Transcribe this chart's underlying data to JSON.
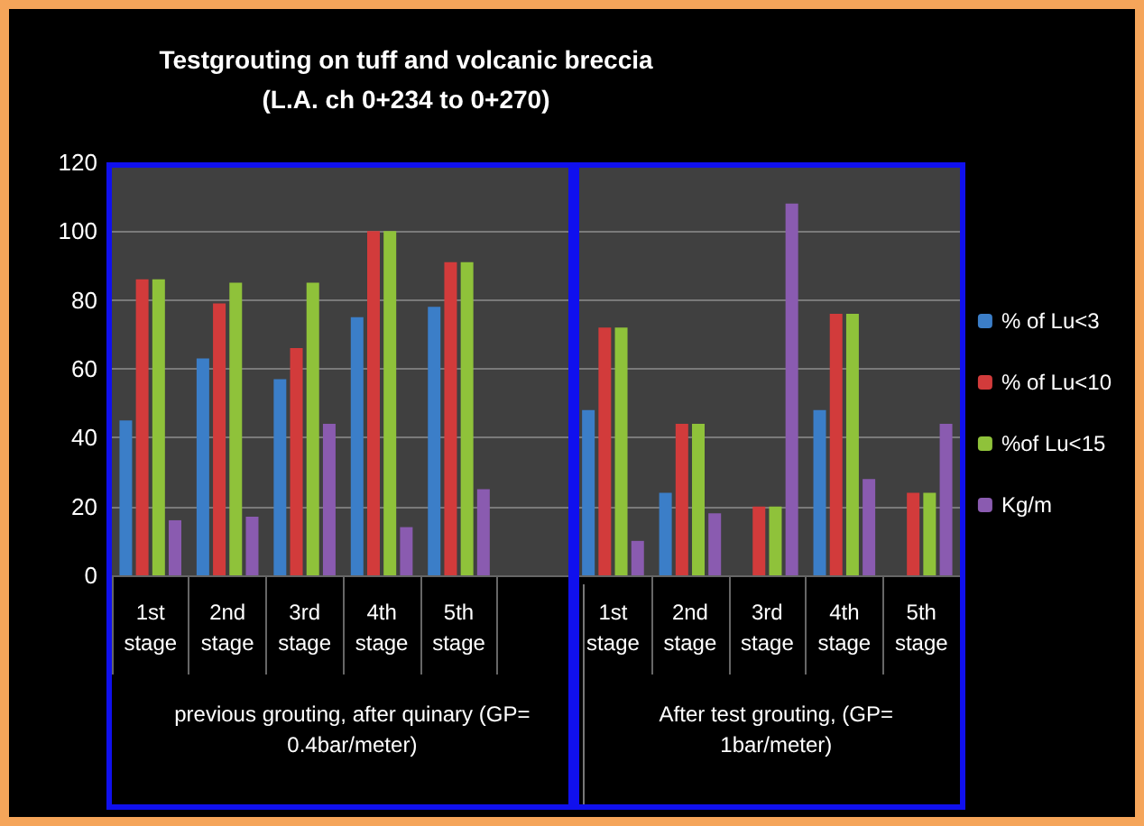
{
  "chart_data": {
    "type": "bar",
    "title": "Testgrouting on tuff and volcanic breccia\n(L.A. ch 0+234 to 0+270)",
    "categories": [
      "1st\nstage",
      "2nd\nstage",
      "3rd\nstage",
      "4th\nstage",
      "5th\nstage",
      null,
      "1st\nstage",
      "2nd\nstage",
      "3rd\nstage",
      "4th\nstage",
      "5th\nstage"
    ],
    "series": [
      {
        "name": "% of Lu<3",
        "color": "#3b7ec8",
        "values": [
          45,
          63,
          57,
          75,
          78,
          null,
          48,
          24,
          null,
          48,
          null
        ]
      },
      {
        "name": "% of Lu<10",
        "color": "#d23b3b",
        "values": [
          86,
          79,
          66,
          100,
          91,
          null,
          72,
          44,
          20,
          76,
          24
        ]
      },
      {
        "name": "%of Lu<15",
        "color": "#8fc23a",
        "values": [
          86,
          85,
          85,
          100,
          91,
          null,
          72,
          44,
          20,
          76,
          24
        ]
      },
      {
        "name": "Kg/m",
        "color": "#8a5bb0",
        "values": [
          16,
          17,
          44,
          14,
          25,
          null,
          10,
          18,
          108,
          28,
          44
        ]
      }
    ],
    "ylim": [
      0,
      120
    ],
    "yticks": [
      0,
      20,
      40,
      60,
      80,
      100,
      120
    ],
    "grid": "y",
    "legend": "right",
    "annotations": [
      "previous grouting, after quinary (GP=\n0.4bar/meter)",
      "After test grouting, (GP=\n1bar/meter)"
    ]
  }
}
